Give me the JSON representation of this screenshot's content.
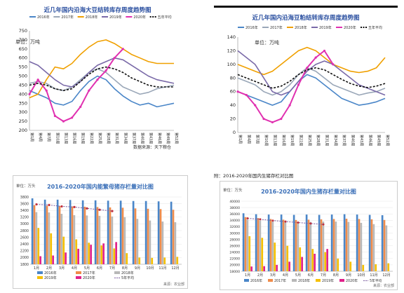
{
  "charts": {
    "soybean": {
      "title": "近几年国内沿海大豆结转库存周度趋势图",
      "unit": "单位：万吨",
      "source": "数据来源：天下粮仓",
      "legend": [
        "2016年",
        "2017年",
        "2018年",
        "2019年",
        "2020年",
        "五年平均"
      ],
      "colors": [
        "#4a86c8",
        "#9aa7b8",
        "#f0a000",
        "#7a6aa8",
        "#e030b0",
        "#111111"
      ],
      "yticks": [
        "750",
        "700",
        "650",
        "600",
        "550",
        "500",
        "450",
        "400",
        "350",
        "300",
        "250",
        "200"
      ],
      "xticks": [
        "第1周",
        "第4周",
        "第7周",
        "第10周",
        "第13周",
        "第16周",
        "第19周",
        "第22周",
        "第25周",
        "第28周",
        "第31周",
        "第34周",
        "第37周",
        "第40周",
        "第43周",
        "第46周",
        "第49周",
        "第52周"
      ]
    },
    "meal": {
      "title": "近几年国内沿海豆粕结转库存周度趋势图",
      "unit": "单位：万吨",
      "legend": [
        "2016年",
        "2017年",
        "2018年",
        "2019年",
        "2020年",
        "五年平均"
      ],
      "colors": [
        "#4a86c8",
        "#9aa7b8",
        "#f0a000",
        "#7a6aa8",
        "#e030b0",
        "#111111"
      ],
      "yticks": [
        "140",
        "120",
        "100",
        "80",
        "60",
        "40",
        "20",
        "0"
      ],
      "xticks": [
        "第1周",
        "第4周",
        "第7周",
        "第10周",
        "第13周",
        "第16周",
        "第19周",
        "第22周",
        "第25周",
        "第28周",
        "第31周",
        "第34周",
        "第37周",
        "第40周",
        "第43周",
        "第46周",
        "第49周",
        "第52周"
      ]
    },
    "sow": {
      "title": "2016-2020年国内能繁母猪存栏量对比图",
      "unit": "单位：万头",
      "source": "来源：农业部",
      "yticks": [
        "3800",
        "3600",
        "3400",
        "3200",
        "3000",
        "2800",
        "2600",
        "2400",
        "2200",
        "2000",
        "1800"
      ],
      "months": [
        "1月",
        "2月",
        "3月",
        "4月",
        "5月",
        "6月",
        "7月",
        "8月",
        "9月",
        "10月",
        "11月",
        "12月"
      ],
      "legend": [
        "2016年",
        "2017年",
        "2018年",
        "2019年",
        "2020年",
        "5年平均"
      ],
      "colors": [
        "#4a86c8",
        "#f08c4a",
        "#b8b8b8",
        "#f5c000",
        "#e0208a",
        "#7a5b9e"
      ]
    },
    "hog": {
      "caption": "附：2016-2020年国内生猪存栏对比图",
      "title": "2016-2020年国内生猪存栏量对比图",
      "unit": "单位：万头",
      "source": "来源：农业部",
      "yticks": [
        "40000",
        "38000",
        "36000",
        "34000",
        "32000",
        "30000",
        "28000",
        "26000",
        "24000",
        "22000",
        "20000",
        "18000"
      ],
      "months": [
        "1月",
        "2月",
        "3月",
        "4月",
        "5月",
        "6月",
        "7月",
        "8月",
        "9月",
        "10月",
        "11月",
        "12月"
      ],
      "legend": [
        "2016年",
        "2017年",
        "2018年",
        "2019年",
        "2020年",
        "5年平均"
      ],
      "colors": [
        "#4a86c8",
        "#f08c4a",
        "#b8b8b8",
        "#f5c000",
        "#e0208a",
        "#7a5b9e"
      ]
    }
  },
  "chart_data": [
    {
      "type": "line",
      "ylim": [
        200,
        750
      ],
      "x": [
        1,
        4,
        7,
        10,
        13,
        16,
        19,
        22,
        25,
        28,
        31,
        34,
        37,
        40,
        43,
        46,
        49,
        52
      ],
      "series": [
        {
          "name": "2016年",
          "values": [
            420,
            400,
            380,
            350,
            340,
            360,
            420,
            470,
            500,
            480,
            430,
            390,
            360,
            340,
            350,
            330,
            340,
            350
          ]
        },
        {
          "name": "2017年",
          "values": [
            460,
            470,
            460,
            430,
            420,
            440,
            480,
            520,
            540,
            520,
            480,
            440,
            420,
            400,
            410,
            430,
            440,
            450
          ]
        },
        {
          "name": "2018年",
          "values": [
            380,
            400,
            480,
            550,
            540,
            570,
            620,
            660,
            690,
            700,
            680,
            650,
            620,
            600,
            580,
            570,
            570,
            570
          ]
        },
        {
          "name": "2019年",
          "values": [
            580,
            560,
            520,
            480,
            450,
            440,
            470,
            520,
            560,
            580,
            600,
            590,
            560,
            530,
            500,
            480,
            470,
            460
          ]
        },
        {
          "name": "2020年",
          "values": [
            400,
            480,
            420,
            280,
            250,
            270,
            330,
            420,
            480,
            530,
            600,
            650,
            null,
            null,
            null,
            null,
            null,
            null
          ]
        },
        {
          "name": "五年平均",
          "values": [
            450,
            460,
            450,
            430,
            420,
            430,
            470,
            510,
            540,
            550,
            540,
            520,
            490,
            470,
            450,
            440,
            440,
            440
          ]
        }
      ]
    },
    {
      "type": "line",
      "ylim": [
        0,
        140
      ],
      "x": [
        1,
        4,
        7,
        10,
        13,
        16,
        19,
        22,
        25,
        28,
        31,
        34,
        37,
        40,
        43,
        46,
        49,
        52
      ],
      "series": [
        {
          "name": "2016年",
          "values": [
            60,
            55,
            50,
            45,
            40,
            45,
            60,
            75,
            85,
            80,
            70,
            60,
            50,
            45,
            40,
            42,
            45,
            50
          ]
        },
        {
          "name": "2017年",
          "values": [
            80,
            75,
            70,
            60,
            55,
            60,
            70,
            85,
            95,
            90,
            80,
            70,
            65,
            60,
            55,
            58,
            60,
            65
          ]
        },
        {
          "name": "2018年",
          "values": [
            100,
            95,
            90,
            85,
            90,
            100,
            110,
            120,
            125,
            120,
            110,
            100,
            95,
            90,
            88,
            90,
            95,
            110
          ]
        },
        {
          "name": "2019年",
          "values": [
            120,
            110,
            100,
            80,
            60,
            55,
            60,
            75,
            90,
            100,
            105,
            100,
            90,
            80,
            70,
            65,
            60,
            55
          ]
        },
        {
          "name": "2020年",
          "values": [
            60,
            55,
            40,
            20,
            15,
            20,
            40,
            70,
            95,
            110,
            120,
            100,
            null,
            null,
            null,
            null,
            null,
            null
          ]
        },
        {
          "name": "五年平均",
          "values": [
            85,
            80,
            75,
            70,
            65,
            68,
            75,
            85,
            92,
            95,
            92,
            85,
            78,
            72,
            68,
            66,
            68,
            72
          ]
        }
      ]
    },
    {
      "type": "bar",
      "ylim": [
        1800,
        3800
      ],
      "categories": [
        "1月",
        "2月",
        "3月",
        "4月",
        "5月",
        "6月",
        "7月",
        "8月",
        "9月",
        "10月",
        "11月",
        "12月"
      ],
      "series": [
        {
          "name": "2016年",
          "values": [
            3760,
            3720,
            3720,
            3710,
            3700,
            3700,
            3690,
            3690,
            3680,
            3680,
            3670,
            3660
          ]
        },
        {
          "name": "2017年",
          "values": [
            3560,
            3540,
            3530,
            3520,
            3510,
            3500,
            3490,
            3480,
            3460,
            3450,
            3440,
            3420
          ]
        },
        {
          "name": "2018年",
          "values": [
            3350,
            3340,
            3300,
            3260,
            3250,
            3240,
            3220,
            3200,
            3150,
            3100,
            3070,
            3050
          ]
        },
        {
          "name": "2019年",
          "values": [
            2880,
            2720,
            2620,
            2540,
            2440,
            2360,
            2270,
            2130,
            2000,
            1990,
            2000,
            2020
          ]
        },
        {
          "name": "2020年",
          "values": [
            2040,
            2060,
            2150,
            2260,
            2380,
            2420,
            2460,
            null,
            null,
            null,
            null,
            null
          ]
        },
        {
          "name": "5年平均",
          "values": [
            3580,
            3560,
            3520,
            3500,
            3460,
            3420,
            3380,
            null,
            null,
            null,
            null,
            null
          ]
        }
      ]
    },
    {
      "type": "bar",
      "ylim": [
        18000,
        40000
      ],
      "categories": [
        "1月",
        "2月",
        "3月",
        "4月",
        "5月",
        "6月",
        "7月",
        "8月",
        "9月",
        "10月",
        "11月",
        "12月"
      ],
      "series": [
        {
          "name": "2016年",
          "values": [
            36200,
            35900,
            35800,
            35800,
            35700,
            35800,
            35700,
            35800,
            35900,
            35800,
            35700,
            35600
          ]
        },
        {
          "name": "2017年",
          "values": [
            35000,
            34700,
            34400,
            34200,
            34100,
            34200,
            34300,
            34400,
            34500,
            34400,
            34300,
            34100
          ]
        },
        {
          "name": "2018年",
          "values": [
            34200,
            33900,
            33600,
            33400,
            33400,
            33500,
            33600,
            33600,
            33500,
            33200,
            32800,
            32400
          ]
        },
        {
          "name": "2019年",
          "values": [
            29000,
            28500,
            27000,
            26000,
            25500,
            25000,
            24000,
            22000,
            21000,
            20000,
            20200,
            20500
          ]
        },
        {
          "name": "2020年",
          "values": [
            19500,
            19600,
            20000,
            21000,
            22500,
            23500,
            25000,
            null,
            null,
            null,
            null,
            null
          ]
        },
        {
          "name": "5年平均",
          "values": [
            34600,
            34300,
            33900,
            33600,
            33300,
            33000,
            32700,
            null,
            null,
            null,
            null,
            null
          ]
        }
      ]
    }
  ]
}
